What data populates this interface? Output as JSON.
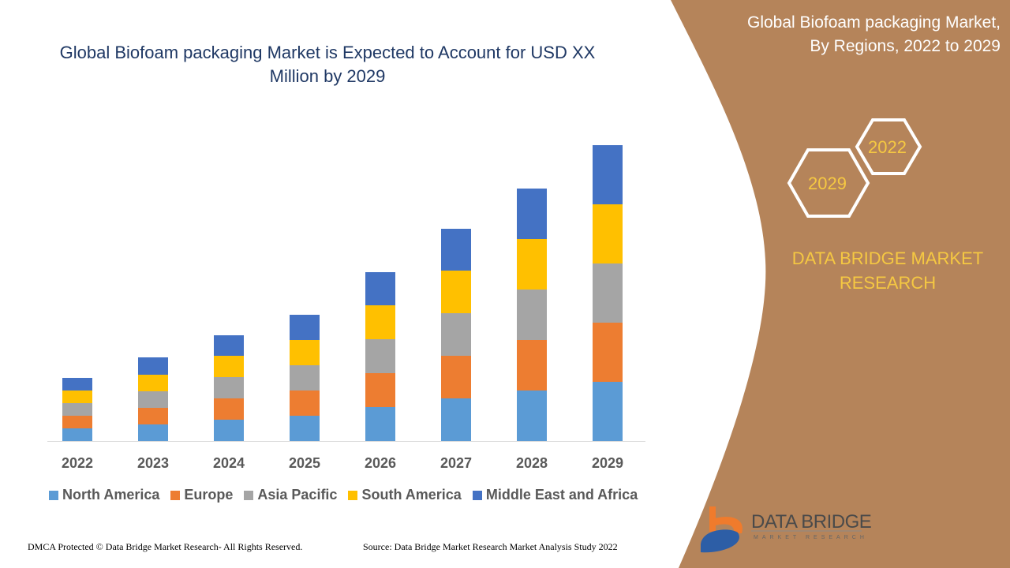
{
  "title": "Global Biofoam packaging Market is Expected to Account for USD XX Million by 2029",
  "side_panel": {
    "title_line1": "Global Biofoam packaging Market,",
    "title_line2": "By Regions, 2022 to 2029",
    "hex_years": [
      "2022",
      "2029"
    ],
    "brand_line1": "DATA BRIDGE MARKET",
    "brand_line2": "RESEARCH",
    "panel_color": "#b5845a"
  },
  "logo": {
    "name": "DATA BRIDGE",
    "tagline": "MARKET RESEARCH"
  },
  "footer": {
    "left": "DMCA Protected © Data Bridge Market Research- All Rights Reserved.",
    "right": "Source: Data Bridge Market Research Market Analysis Study 2022"
  },
  "chart_data": {
    "type": "bar",
    "stacked": true,
    "title": "Global Biofoam packaging Market is Expected to Account for USD XX Million by 2029",
    "xlabel": "",
    "ylabel": "",
    "y_axis_visible": false,
    "grid": false,
    "legend_position": "bottom",
    "ylim": [
      0,
      375
    ],
    "categories": [
      "2022",
      "2023",
      "2024",
      "2025",
      "2026",
      "2027",
      "2028",
      "2029"
    ],
    "series": [
      {
        "name": "North America",
        "color": "#5b9bd5",
        "values": [
          16,
          21,
          27,
          32,
          43,
          54,
          64,
          75
        ]
      },
      {
        "name": "Europe",
        "color": "#ed7d31",
        "values": [
          16,
          21,
          27,
          32,
          43,
          54,
          64,
          75
        ]
      },
      {
        "name": "Asia Pacific",
        "color": "#a5a5a5",
        "values": [
          16,
          21,
          27,
          32,
          43,
          54,
          64,
          75
        ]
      },
      {
        "name": "South America",
        "color": "#ffc000",
        "values": [
          16,
          21,
          27,
          32,
          43,
          54,
          64,
          75
        ]
      },
      {
        "name": "Middle East and Africa",
        "color": "#4472c4",
        "values": [
          16,
          22,
          26,
          32,
          42,
          53,
          64,
          75
        ]
      }
    ]
  }
}
